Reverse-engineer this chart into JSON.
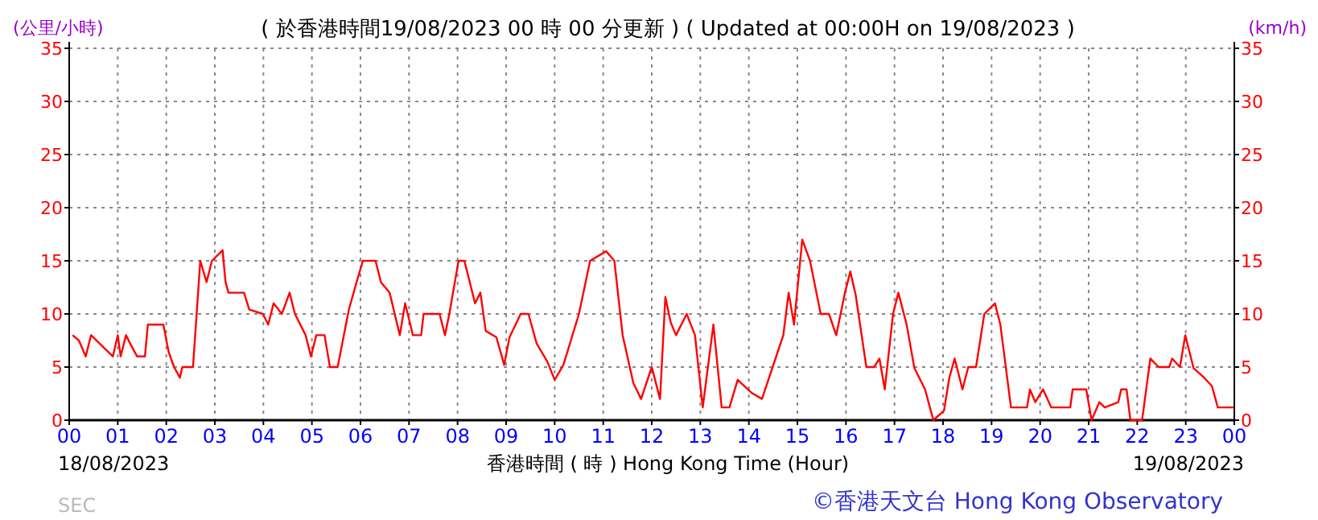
{
  "chart_data": {
    "type": "line",
    "title": "( 於香港時間19/08/2023 00 時 00 分更新 ) ( Updated at 00:00H on 19/08/2023 )",
    "xlabel": "香港時間 ( 時 ) Hong Kong Time (Hour)",
    "ylabel": "(公里/小時)",
    "y2label": "(km/h)",
    "annotations": [
      "18/08/2023",
      "19/08/2023",
      "©香港天文台 Hong Kong Observatory",
      "SEC"
    ],
    "xlim": [
      0,
      24
    ],
    "xticks": [
      {
        "value": 0,
        "label": "00"
      },
      {
        "value": 1,
        "label": "01"
      },
      {
        "value": 2,
        "label": "02"
      },
      {
        "value": 3,
        "label": "03"
      },
      {
        "value": 4,
        "label": "04"
      },
      {
        "value": 5,
        "label": "05"
      },
      {
        "value": 6,
        "label": "06"
      },
      {
        "value": 7,
        "label": "07"
      },
      {
        "value": 8,
        "label": "08"
      },
      {
        "value": 9,
        "label": "09"
      },
      {
        "value": 10,
        "label": "10"
      },
      {
        "value": 11,
        "label": "11"
      },
      {
        "value": 12,
        "label": "12"
      },
      {
        "value": 13,
        "label": "13"
      },
      {
        "value": 14,
        "label": "14"
      },
      {
        "value": 15,
        "label": "15"
      },
      {
        "value": 16,
        "label": "16"
      },
      {
        "value": 17,
        "label": "17"
      },
      {
        "value": 18,
        "label": "18"
      },
      {
        "value": 19,
        "label": "19"
      },
      {
        "value": 20,
        "label": "20"
      },
      {
        "value": 21,
        "label": "21"
      },
      {
        "value": 22,
        "label": "22"
      },
      {
        "value": 23,
        "label": "23"
      },
      {
        "value": 24,
        "label": "00"
      }
    ],
    "ylim": [
      0,
      35
    ],
    "yticks": [
      0,
      5,
      10,
      15,
      20,
      25,
      30,
      35
    ],
    "y2lim": [
      0,
      35
    ],
    "y2ticks": [
      0,
      5,
      10,
      15,
      20,
      25,
      30,
      35
    ],
    "grid": true,
    "series": [
      {
        "color": "#ff0000",
        "x": [
          0.07,
          0.2,
          0.34,
          0.45,
          0.9,
          1.0,
          1.06,
          1.17,
          1.28,
          1.4,
          1.56,
          1.62,
          1.94,
          2.05,
          2.16,
          2.28,
          2.33,
          2.55,
          2.7,
          2.83,
          2.94,
          3.16,
          3.22,
          3.28,
          3.6,
          3.71,
          3.99,
          4.1,
          4.21,
          4.38,
          4.54,
          4.65,
          4.87,
          4.98,
          5.09,
          5.26,
          5.37,
          5.53,
          5.76,
          5.92,
          6.05,
          6.31,
          6.42,
          6.6,
          6.81,
          6.92,
          7.08,
          7.25,
          7.3,
          7.63,
          7.74,
          7.83,
          8.02,
          8.14,
          8.25,
          8.36,
          8.47,
          8.58,
          8.8,
          8.96,
          9.07,
          9.3,
          9.46,
          9.63,
          9.85,
          10.0,
          10.18,
          10.5,
          10.73,
          11.06,
          11.23,
          11.4,
          11.62,
          11.78,
          12.0,
          12.17,
          12.28,
          12.39,
          12.5,
          12.72,
          12.89,
          13.05,
          13.27,
          13.44,
          13.6,
          13.77,
          14.05,
          14.27,
          14.49,
          14.71,
          14.82,
          14.93,
          15.1,
          15.26,
          15.48,
          15.65,
          15.8,
          15.98,
          16.09,
          16.2,
          16.42,
          16.58,
          16.69,
          16.8,
          16.97,
          17.08,
          17.25,
          17.41,
          17.63,
          17.8,
          18.02,
          18.13,
          18.24,
          18.4,
          18.52,
          18.68,
          18.85,
          19.07,
          19.18,
          19.4,
          19.73,
          19.79,
          19.9,
          20.06,
          20.23,
          20.62,
          20.67,
          20.95,
          21.06,
          21.22,
          21.33,
          21.61,
          21.67,
          21.78,
          21.86,
          22.1,
          22.27,
          22.44,
          22.66,
          22.72,
          22.88,
          22.99,
          23.16,
          23.38,
          23.54,
          23.66,
          23.98
        ],
        "values": [
          8,
          7.5,
          6,
          8,
          6,
          8,
          6,
          8,
          7,
          6,
          6,
          9,
          9,
          6.4,
          5,
          4,
          5,
          5,
          15,
          13,
          15,
          16,
          13,
          12,
          12,
          10.4,
          10,
          9,
          11,
          10,
          12,
          10,
          8,
          6,
          8,
          8,
          5,
          5,
          10.4,
          13,
          15,
          15,
          13,
          12,
          8,
          11,
          8,
          8,
          10,
          10,
          8,
          10,
          15,
          15,
          13,
          11,
          12,
          8.4,
          7.8,
          5.2,
          7.8,
          10,
          10,
          7.2,
          5.5,
          3.8,
          5.2,
          10,
          15,
          15.9,
          15,
          8,
          3.5,
          2,
          5,
          2,
          11.6,
          9.2,
          8,
          10,
          8,
          1.2,
          9,
          1.2,
          1.2,
          3.8,
          2.6,
          2,
          5,
          8,
          12,
          9,
          17,
          15,
          10,
          10,
          8,
          12,
          14,
          11.8,
          5,
          5,
          5.8,
          2.9,
          10,
          12,
          9,
          4.9,
          2.9,
          0,
          0.9,
          4,
          5.8,
          2.9,
          5,
          5,
          10,
          11,
          9,
          1.2,
          1.2,
          2.9,
          1.7,
          2.9,
          1.2,
          1.2,
          2.9,
          2.9,
          0,
          1.7,
          1.2,
          1.7,
          2.9,
          2.9,
          0,
          0,
          5.8,
          5,
          5,
          5.8,
          5,
          8,
          4.9,
          4,
          3.2,
          1.2,
          1.2
        ]
      }
    ]
  }
}
